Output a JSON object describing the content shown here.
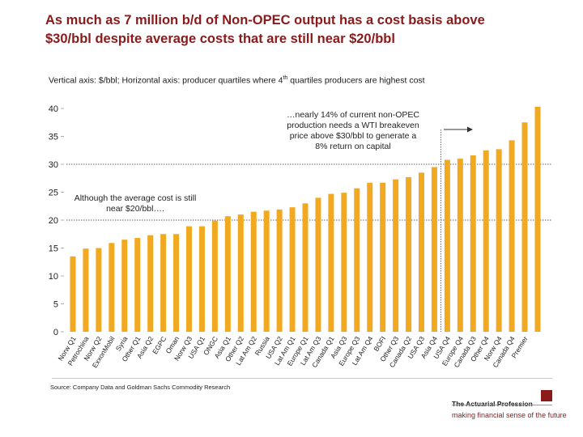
{
  "title_lines": [
    "As much as 7 million b/d of Non-OPEC output has a cost basis above",
    "$30/bbl despite average costs that are still near $20/bbl"
  ],
  "subtitle": {
    "before_sup": "Vertical axis:  $/bbl; Horizontal axis:  producer quartiles where 4",
    "sup": "th",
    "after_sup": " quartiles producers are highest cost"
  },
  "chart_data": {
    "type": "bar",
    "ylim": [
      0,
      40
    ],
    "yticks": [
      0,
      5,
      10,
      15,
      20,
      25,
      30,
      35,
      40
    ],
    "grid": false,
    "reference_lines": [
      20,
      30
    ],
    "bar_color": "#f2a922",
    "categories": [
      "Norw Q1",
      "Petrochina",
      "Norw Q2",
      "ExxonMobil",
      "Syria",
      "Other Q1",
      "Asia Q2",
      "EGPC",
      "Oman",
      "Norw Q3",
      "USA Q1",
      "ONGC",
      "Asia Q1",
      "Other Q2",
      "Lat Am Q2",
      "Russia",
      "USA Q2",
      "Lat Am Q1",
      "Europe Q1",
      "Lat Am Q3",
      "Canada Q1",
      "Asia Q3",
      "Europe Q3",
      "Lat Am Q4",
      "BOFI",
      "Other Q3",
      "Canada Q2",
      "USA Q3",
      "Asia Q4",
      "USA Q4",
      "Europe Q4",
      "Canada Q3",
      "Other Q4",
      "Norw Q4",
      "Canada Q4",
      "Premier"
    ],
    "values": [
      13.5,
      14.9,
      15.0,
      15.9,
      16.5,
      16.8,
      17.3,
      17.5,
      17.5,
      18.9,
      18.9,
      19.9,
      20.7,
      21.0,
      21.5,
      21.7,
      21.9,
      22.3,
      23.0,
      24.0,
      24.7,
      24.9,
      25.7,
      26.7,
      26.7,
      27.3,
      27.7,
      28.5,
      29.5,
      30.8,
      31.0,
      31.6,
      32.5,
      32.7,
      34.3,
      37.5
    ],
    "extra_last_value": 40.3,
    "annotations": {
      "left": [
        "Although the average cost is still",
        "near $20/bbl…."
      ],
      "right": [
        "…nearly 14% of current non-OPEC",
        "production needs a WTI breakeven",
        "price above $30/bbl to generate a",
        "8% return on capital"
      ]
    }
  },
  "source_text": "Source: Company Data and Goldman Sachs Commodity Research",
  "brand": {
    "name": "The Actuarial Profession",
    "tagline": "making financial sense of the future",
    "color": "#8b1a1a"
  }
}
